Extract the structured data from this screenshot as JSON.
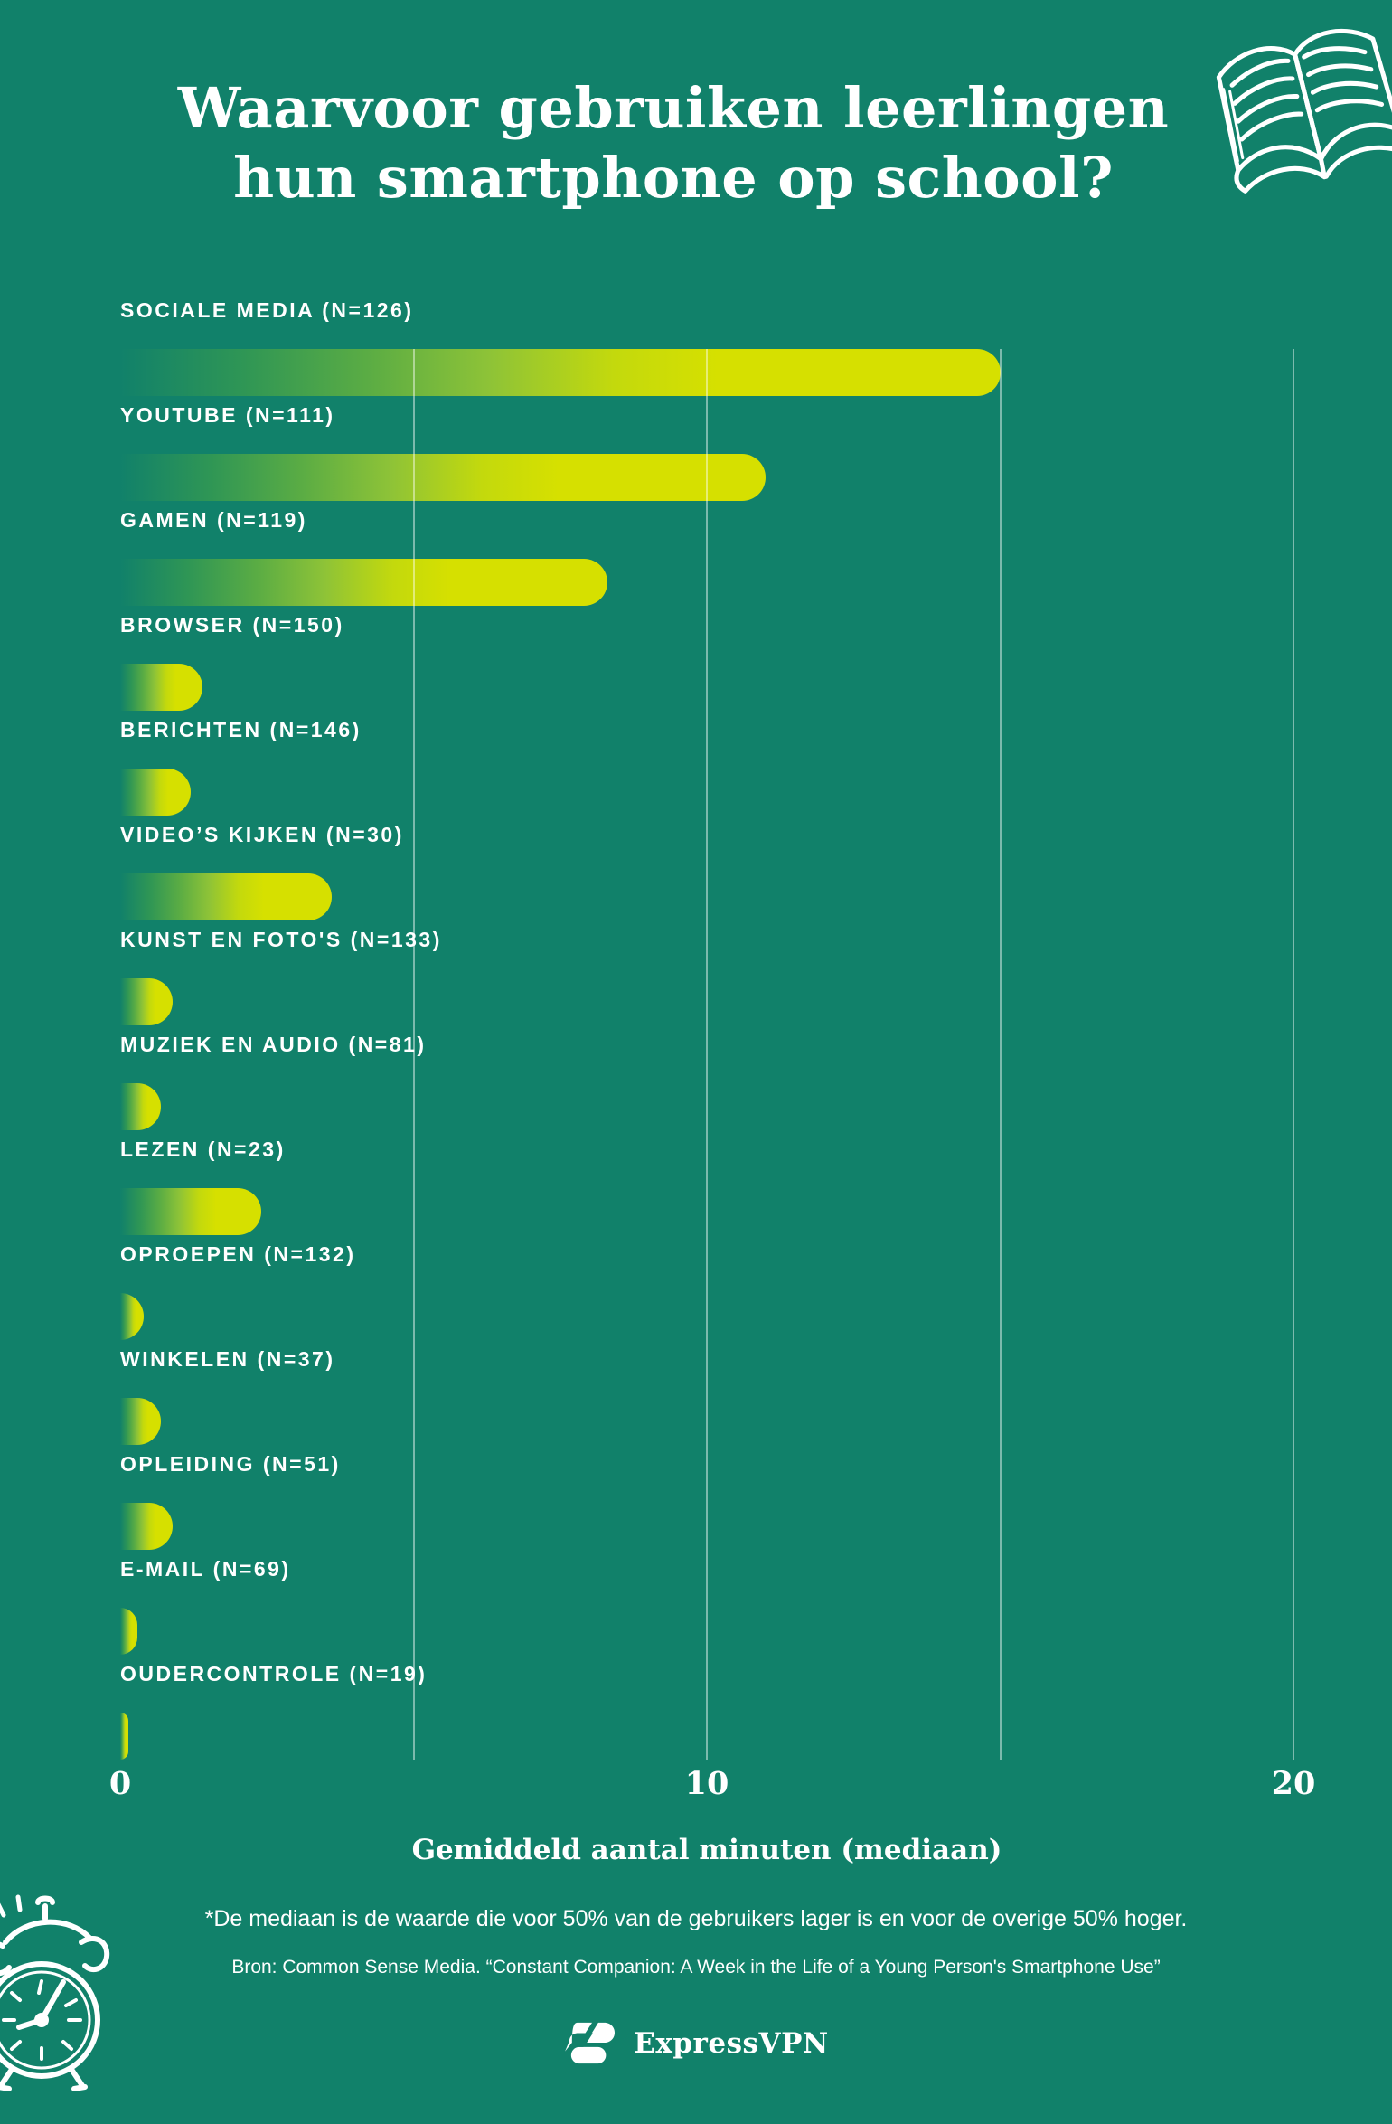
{
  "page": {
    "background_color": "#11816A",
    "text_color": "#FFFFFF",
    "title_lines": [
      "Waarvoor gebruiken leerlingen",
      "hun smartphone op school?"
    ]
  },
  "chart_data": {
    "type": "bar",
    "orientation": "horizontal",
    "title": "Waarvoor gebruiken leerlingen hun smartphone op school?",
    "xlabel": "Gemiddeld aantal minuten (mediaan)",
    "xlim": [
      0,
      20
    ],
    "x_ticks": [
      0,
      10,
      20
    ],
    "gridlines_at": [
      5,
      10,
      15,
      20
    ],
    "grid": true,
    "legend": false,
    "bar_gradient": [
      "#11816A",
      "#5AAC44",
      "#8EC337",
      "#D6E000"
    ],
    "gridline_color": "rgba(255,255,255,0.45)",
    "categories": [
      "SOCIALE MEDIA (N=126)",
      "YOUTUBE (N=111)",
      "GAMEN (N=119)",
      "BROWSER (N=150)",
      "BERICHTEN (N=146)",
      "VIDEO’S KIJKEN (N=30)",
      "KUNST EN FOTO'S (N=133)",
      "MUZIEK EN AUDIO (N=81)",
      "LEZEN (N=23)",
      "OPROEPEN (N=132)",
      "WINKELEN (N=37)",
      "OPLEIDING (N=51)",
      "E-MAIL (N=69)",
      "OUDERCONTROLE (N=19)"
    ],
    "values": [
      15,
      11,
      8.3,
      1.4,
      1.2,
      3.6,
      0.9,
      0.7,
      2.4,
      0.4,
      0.7,
      0.9,
      0.3,
      0.1
    ]
  },
  "axis": {
    "tick_labels": [
      "0",
      "10",
      "20"
    ],
    "x_title": "Gemiddeld aantal minuten (mediaan)"
  },
  "footer": {
    "footnote": "*De mediaan is de waarde die voor 50% van de gebruikers lager is en voor de overige 50% hoger.",
    "source": "Bron: Common Sense Media. “Constant Companion: A Week in the Life of a Young Person's Smartphone Use”",
    "brand": "ExpressVPN"
  },
  "icons": {
    "top_right": "open-book-icon",
    "bottom_left": "alarm-clock-icon",
    "brand_mark": "expressvpn-logo-icon"
  }
}
